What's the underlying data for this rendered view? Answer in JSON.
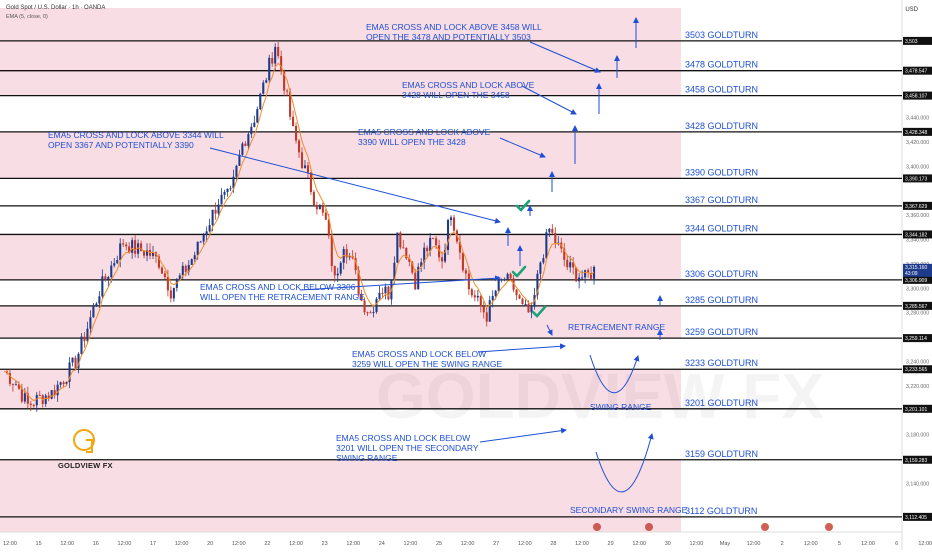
{
  "header": {
    "symbol": "Gold Spot / U.S. Dollar · 1h · OANDA",
    "indicator": "EMA (5, close, 0)",
    "currency": "USD"
  },
  "brand": {
    "name": "GOLDVIEW FX",
    "watermark": "GOLDVIEW FX"
  },
  "colors": {
    "accent": "#1e4fd6",
    "band_pink": "#f9dde4",
    "candle_up": "#1e3a8a",
    "candle_down": "#c0392b",
    "ema": "#f28c28",
    "check": "#1aa37a",
    "level_line": "#111111",
    "logo_gold": "#f2a60c"
  },
  "chart_data": {
    "type": "line",
    "title": "Gold Spot / U.S. Dollar · 1h · OANDA",
    "instrument": "XAUUSD",
    "timeframe": "1h",
    "ylim": [
      3100,
      3530
    ],
    "y_ticks": [
      3140,
      3160,
      3180,
      3220,
      3240,
      3260,
      3280,
      3300,
      3320,
      3340,
      3360,
      3400,
      3420,
      3440,
      3460,
      3480
    ],
    "x_ticks": [
      "12:00",
      "15",
      "12:00",
      "16",
      "12:00",
      "17",
      "12:00",
      "20",
      "12:00",
      "22",
      "12:00",
      "23",
      "12:00",
      "24",
      "12:00",
      "25",
      "12:00",
      "27",
      "12:00",
      "28",
      "12:00",
      "29",
      "12:00",
      "30",
      "12:00",
      "May",
      "12:00",
      "2",
      "12:00",
      "5",
      "12:00",
      "6",
      "12:00"
    ],
    "price_path": [
      [
        0,
        3232
      ],
      [
        4,
        3222
      ],
      [
        8,
        3204
      ],
      [
        12,
        3210
      ],
      [
        16,
        3214
      ],
      [
        20,
        3226
      ],
      [
        24,
        3240
      ],
      [
        28,
        3268
      ],
      [
        32,
        3298
      ],
      [
        36,
        3318
      ],
      [
        40,
        3338
      ],
      [
        44,
        3332
      ],
      [
        48,
        3330
      ],
      [
        52,
        3322
      ],
      [
        56,
        3298
      ],
      [
        60,
        3312
      ],
      [
        64,
        3328
      ],
      [
        68,
        3350
      ],
      [
        72,
        3372
      ],
      [
        76,
        3376
      ],
      [
        80,
        3418
      ],
      [
        84,
        3440
      ],
      [
        88,
        3474
      ],
      [
        91,
        3500
      ],
      [
        94,
        3468
      ],
      [
        97,
        3428
      ],
      [
        100,
        3404
      ],
      [
        104,
        3375
      ],
      [
        108,
        3354
      ],
      [
        111,
        3306
      ],
      [
        114,
        3338
      ],
      [
        117,
        3320
      ],
      [
        120,
        3290
      ],
      [
        123,
        3280
      ],
      [
        126,
        3300
      ],
      [
        129,
        3296
      ],
      [
        132,
        3344
      ],
      [
        135,
        3330
      ],
      [
        138,
        3306
      ],
      [
        141,
        3330
      ],
      [
        144,
        3338
      ],
      [
        147,
        3324
      ],
      [
        150,
        3364
      ],
      [
        153,
        3332
      ],
      [
        156,
        3300
      ],
      [
        159,
        3288
      ],
      [
        162,
        3278
      ],
      [
        165,
        3298
      ],
      [
        168,
        3308
      ],
      [
        171,
        3300
      ],
      [
        174,
        3283
      ],
      [
        177,
        3278
      ],
      [
        180,
        3322
      ],
      [
        183,
        3348
      ],
      [
        186,
        3334
      ],
      [
        189,
        3318
      ],
      [
        192,
        3312
      ],
      [
        195,
        3308
      ],
      [
        198,
        3315
      ]
    ],
    "ema_label": "EMA (5, close, 0)",
    "levels": [
      {
        "price": 3503,
        "label": "3503 GOLDTURN",
        "tag": "3,503"
      },
      {
        "price": 3478.547,
        "label": "3478 GOLDTURN",
        "tag": "3,478.547"
      },
      {
        "price": 3458.107,
        "label": "3458 GOLDTURN",
        "tag": "3,458.107"
      },
      {
        "price": 3428.348,
        "label": "3428 GOLDTURN",
        "tag": "3,428.348"
      },
      {
        "price": 3390.173,
        "label": "3390 GOLDTURN",
        "tag": "3,390.173"
      },
      {
        "price": 3367.629,
        "label": "3367 GOLDTURN",
        "tag": "3,367.629"
      },
      {
        "price": 3344.182,
        "label": "3344 GOLDTURN",
        "tag": "3,344.182"
      },
      {
        "price": 3306.909,
        "label": "3306 GOLDTURN",
        "tag": "3,306.909"
      },
      {
        "price": 3285.567,
        "label": "3285 GOLDTURN",
        "tag": "3,285.567"
      },
      {
        "price": 3259.114,
        "label": "3259 GOLDTURN",
        "tag": "3,259.114"
      },
      {
        "price": 3233.565,
        "label": "3233 GOLDTURN",
        "tag": "3,233.565"
      },
      {
        "price": 3201.101,
        "label": "3201 GOLDTURN",
        "tag": "3,201.101"
      },
      {
        "price": 3159.283,
        "label": "3159 GOLDTURN",
        "tag": "3,159.283"
      },
      {
        "price": 3112.405,
        "label": "3112 GOLDTURN",
        "tag": "3,112.405"
      }
    ],
    "current_price": {
      "value": "3,315.160",
      "countdown": "43:09"
    },
    "annotations": [
      {
        "lines": [
          "EMA5 CROSS AND LOCK ABOVE 3458 WILL",
          "OPEN THE 3478 AND POTENTIALLY 3503"
        ]
      },
      {
        "lines": [
          "EMA5 CROSS AND LOCK ABOVE",
          "3428 WILL OPEN THE 3458"
        ]
      },
      {
        "lines": [
          "EMA5 CROSS AND LOCK ABOVE 3344 WILL",
          "OPEN 3367 AND POTENTIALLY 3390"
        ]
      },
      {
        "lines": [
          "EMA5 CROSS AND LOCK ABOVE",
          "3390 WILL OPEN THE 3428"
        ]
      },
      {
        "lines": [
          "EMA5 CROSS AND LOCK BELOW 3306",
          "WILL OPEN THE RETRACEMENT RANGE"
        ]
      },
      {
        "lines": [
          "EMA5 CROSS AND LOCK BELOW",
          "3259 WILL OPEN THE SWING RANGE"
        ]
      },
      {
        "lines": [
          "EMA5 CROSS AND LOCK BELOW",
          "3201 WILL OPEN THE SECONDARY",
          "SWING RANGE"
        ]
      }
    ],
    "range_labels": [
      "RETRACEMENT RANGE",
      "SWING RANGE",
      "SECONDARY SWING RANGE"
    ]
  }
}
